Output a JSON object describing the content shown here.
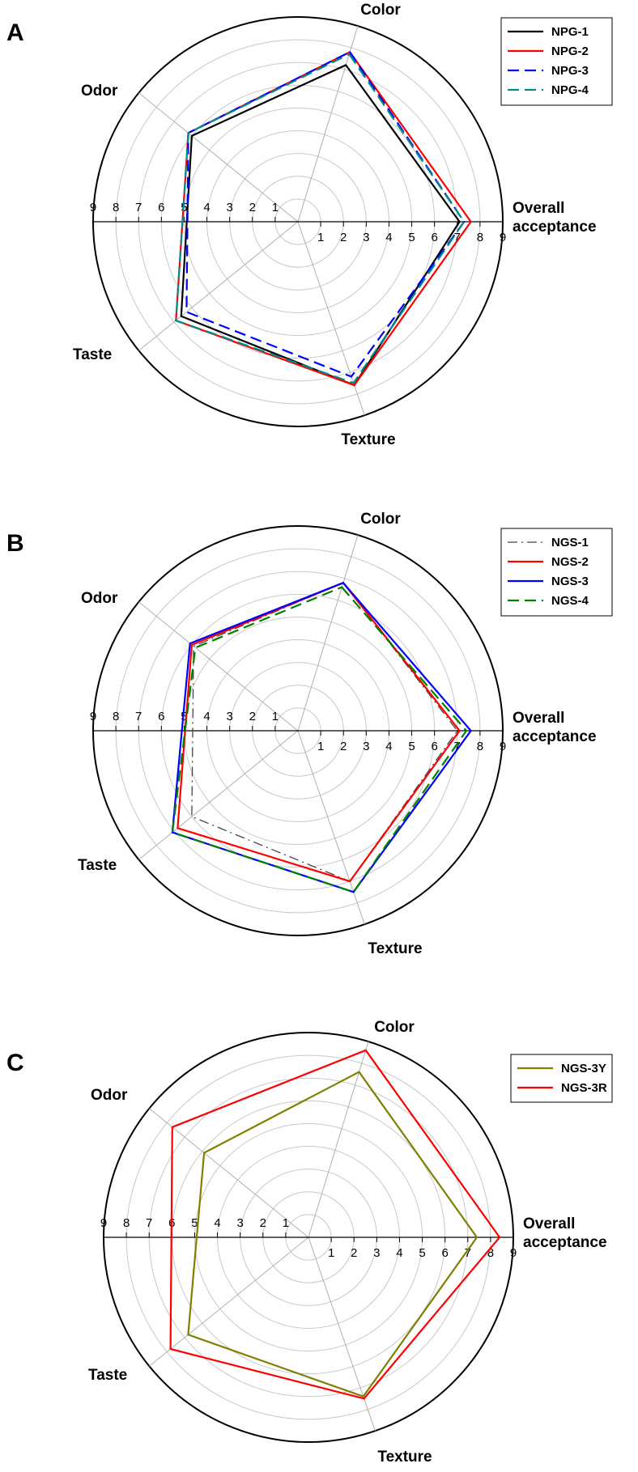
{
  "chart_data": [
    {
      "type": "radar",
      "panel_label": "A",
      "axes": [
        "Color",
        "Overall acceptance",
        "Texture",
        "Taste",
        "Odor"
      ],
      "rlim": [
        0,
        9
      ],
      "tick_labels": [
        "1",
        "2",
        "3",
        "4",
        "5",
        "6",
        "7",
        "8",
        "9"
      ],
      "grid": true,
      "legend_position": "top-right",
      "series": [
        {
          "name": "NPG-1",
          "color": "#000000",
          "dash": "solid",
          "values": [
            7.2,
            7.1,
            7.6,
            6.6,
            6.0
          ]
        },
        {
          "name": "NPG-2",
          "color": "#ff0000",
          "dash": "solid",
          "values": [
            7.8,
            7.6,
            7.6,
            6.9,
            6.2
          ]
        },
        {
          "name": "NPG-3",
          "color": "#0000ff",
          "dash": "dashed",
          "values": [
            7.8,
            7.3,
            7.2,
            6.3,
            6.2
          ]
        },
        {
          "name": "NPG-4",
          "color": "#008b8b",
          "dash": "dashed",
          "values": [
            7.7,
            7.3,
            7.5,
            6.9,
            6.2
          ]
        }
      ]
    },
    {
      "type": "radar",
      "panel_label": "B",
      "axes": [
        "Color",
        "Overall acceptance",
        "Texture",
        "Taste",
        "Odor"
      ],
      "rlim": [
        0,
        9
      ],
      "tick_labels": [
        "1",
        "2",
        "3",
        "4",
        "5",
        "6",
        "7",
        "8",
        "9"
      ],
      "grid": true,
      "legend_position": "top-right",
      "series": [
        {
          "name": "NGS-1",
          "color": "#444444",
          "dash": "dashdot",
          "values": [
            6.8,
            7.0,
            7.0,
            6.0,
            5.9
          ]
        },
        {
          "name": "NGS-2",
          "color": "#ff0000",
          "dash": "solid",
          "values": [
            6.8,
            7.1,
            7.0,
            6.8,
            6.0
          ]
        },
        {
          "name": "NGS-3",
          "color": "#0000ff",
          "dash": "solid",
          "values": [
            6.8,
            7.6,
            7.5,
            7.1,
            6.1
          ]
        },
        {
          "name": "NGS-4",
          "color": "#008000",
          "dash": "dashed",
          "values": [
            6.6,
            7.4,
            7.5,
            7.1,
            5.8
          ]
        }
      ]
    },
    {
      "type": "radar",
      "panel_label": "C",
      "axes": [
        "Color",
        "Overall acceptance",
        "Texture",
        "Taste",
        "Odor"
      ],
      "rlim": [
        0,
        9
      ],
      "tick_labels": [
        "1",
        "2",
        "3",
        "4",
        "5",
        "6",
        "7",
        "8",
        "9"
      ],
      "grid": true,
      "legend_position": "top-right",
      "series": [
        {
          "name": "NGS-3Y",
          "color": "#808000",
          "dash": "solid",
          "values": [
            7.6,
            7.4,
            7.4,
            6.8,
            5.9
          ]
        },
        {
          "name": "NGS-3R",
          "color": "#ff0000",
          "dash": "solid",
          "values": [
            8.6,
            8.4,
            7.5,
            7.8,
            7.7
          ]
        }
      ]
    }
  ]
}
